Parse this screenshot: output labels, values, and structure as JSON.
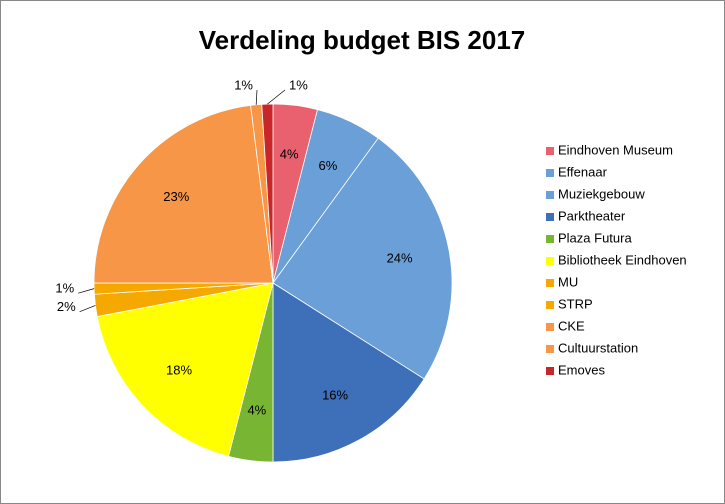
{
  "chart_data": {
    "type": "pie",
    "title": "Verdeling budget BIS 2017",
    "categories": [
      "Eindhoven Museum",
      "Effenaar",
      "Muziekgebouw",
      "Parktheater",
      "Plaza Futura",
      "Bibliotheek Eindhoven",
      "MU",
      "STRP",
      "CKE",
      "Cultuurstation",
      "Emoves"
    ],
    "values": [
      4,
      6,
      24,
      16,
      4,
      18,
      2,
      1,
      23,
      1,
      1
    ],
    "value_labels": [
      "4%",
      "6%",
      "24%",
      "16%",
      "4%",
      "18%",
      "2%",
      "1%",
      "23%",
      "1%",
      "1%"
    ],
    "colors": [
      "#e9606f",
      "#6a9fd8",
      "#6a9fd8",
      "#3e6fb9",
      "#77b532",
      "#ffff00",
      "#f5a800",
      "#f5a800",
      "#f79646",
      "#f79646",
      "#c8262a"
    ],
    "legend": "right"
  }
}
